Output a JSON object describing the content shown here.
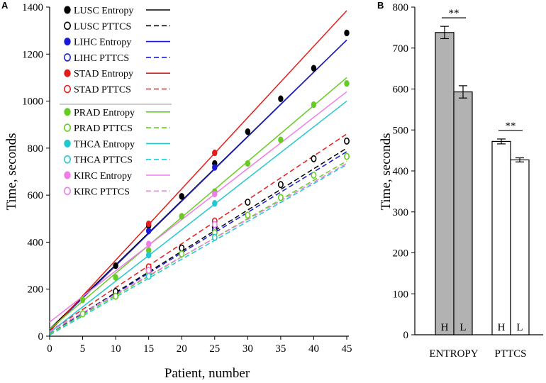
{
  "chart_data": [
    {
      "panel": "A",
      "type": "scatter",
      "xlabel": "Patient, number",
      "ylabel": "Time, seconds",
      "xlim": [
        0,
        45
      ],
      "ylim": [
        0,
        1400
      ],
      "xticks": [
        0,
        5,
        10,
        15,
        20,
        25,
        30,
        35,
        40,
        45
      ],
      "yticks": [
        0,
        200,
        400,
        600,
        800,
        1000,
        1200,
        1400
      ],
      "legend_position": "top-left",
      "series": [
        {
          "name": "LUSC Entropy",
          "color": "#000000",
          "marker": "filled",
          "dash": "solid",
          "x": [
            10,
            15,
            20,
            25,
            30,
            35,
            40,
            45
          ],
          "y": [
            300,
            470,
            595,
            735,
            870,
            1010,
            1140,
            1290
          ],
          "fit": [
            30,
            1260
          ]
        },
        {
          "name": "LUSC PTTCS",
          "color": "#000000",
          "marker": "open",
          "dash": "dashed",
          "x": [
            10,
            15,
            20,
            25,
            30,
            35,
            40,
            45
          ],
          "y": [
            190,
            285,
            375,
            465,
            570,
            645,
            755,
            830
          ],
          "fit": [
            10,
            800
          ]
        },
        {
          "name": "LIHC Entropy",
          "color": "#1a1ad6",
          "marker": "filled",
          "dash": "solid",
          "x": [
            15,
            25
          ],
          "y": [
            448,
            718
          ],
          "fit": [
            25,
            1260
          ]
        },
        {
          "name": "LIHC PTTCS",
          "color": "#1a1ad6",
          "marker": "open",
          "dash": "dashed",
          "x": [
            15,
            25
          ],
          "y": [
            265,
            450
          ],
          "fit": [
            10,
            785
          ]
        },
        {
          "name": "STAD Entropy",
          "color": "#e51c1c",
          "marker": "filled",
          "dash": "solid",
          "x": [
            15,
            25
          ],
          "y": [
            478,
            780
          ],
          "fit": [
            20,
            1385
          ]
        },
        {
          "name": "STAD PTTCS",
          "color": "#e51c1c",
          "marker": "open",
          "dash": "dashed",
          "x": [
            15,
            25
          ],
          "y": [
            295,
            490
          ],
          "fit": [
            20,
            860
          ]
        },
        {
          "name": "PRAD Entropy",
          "color": "#66cc22",
          "marker": "filled",
          "dash": "solid",
          "x": [
            5,
            10,
            15,
            20,
            25,
            30,
            35,
            40,
            45
          ],
          "y": [
            155,
            250,
            365,
            510,
            615,
            735,
            835,
            985,
            1075
          ],
          "fit": [
            30,
            1100
          ]
        },
        {
          "name": "PRAD PTTCS",
          "color": "#66cc22",
          "marker": "open",
          "dash": "dashed",
          "x": [
            5,
            10,
            15,
            20,
            25,
            30,
            35,
            40,
            45
          ],
          "y": [
            95,
            170,
            270,
            350,
            440,
            515,
            590,
            685,
            765
          ],
          "fit": [
            10,
            745
          ]
        },
        {
          "name": "THCA Entropy",
          "color": "#1fc8d2",
          "marker": "filled",
          "dash": "solid",
          "x": [
            15,
            25
          ],
          "y": [
            345,
            565
          ],
          "fit": [
            15,
            1000
          ]
        },
        {
          "name": "THCA PTTCS",
          "color": "#1fc8d2",
          "marker": "open",
          "dash": "dashed",
          "x": [
            15,
            25
          ],
          "y": [
            255,
            420
          ],
          "fit": [
            5,
            730
          ]
        },
        {
          "name": "KIRC Entropy",
          "color": "#f07ce8",
          "marker": "filled",
          "dash": "solid",
          "x": [
            15,
            25
          ],
          "y": [
            392,
            605
          ],
          "fit": [
            60,
            1040
          ]
        },
        {
          "name": "KIRC PTTCS",
          "color": "#f07ce8",
          "marker": "open",
          "dash": "dashed",
          "x": [
            15,
            25
          ],
          "y": [
            280,
            475
          ],
          "fit": [
            20,
            735
          ]
        }
      ]
    },
    {
      "panel": "B",
      "type": "bar",
      "ylabel": "Time, seconds",
      "ylim": [
        0,
        800
      ],
      "yticks": [
        0,
        100,
        200,
        300,
        400,
        500,
        600,
        700,
        800
      ],
      "groups": [
        "ENTROPY",
        "PTTCS"
      ],
      "bars": [
        {
          "group": "ENTROPY",
          "label": "H",
          "value": 738,
          "error": 15,
          "fill": "#b2b2b2"
        },
        {
          "group": "ENTROPY",
          "label": "L",
          "value": 593,
          "error": 15,
          "fill": "#b2b2b2"
        },
        {
          "group": "PTTCS",
          "label": "H",
          "value": 472,
          "error": 6,
          "fill": "#ffffff"
        },
        {
          "group": "PTTCS",
          "label": "L",
          "value": 427,
          "error": 5,
          "fill": "#ffffff"
        }
      ],
      "significance": [
        {
          "group": "ENTROPY",
          "text": "**"
        },
        {
          "group": "PTTCS",
          "text": "**"
        }
      ]
    }
  ]
}
